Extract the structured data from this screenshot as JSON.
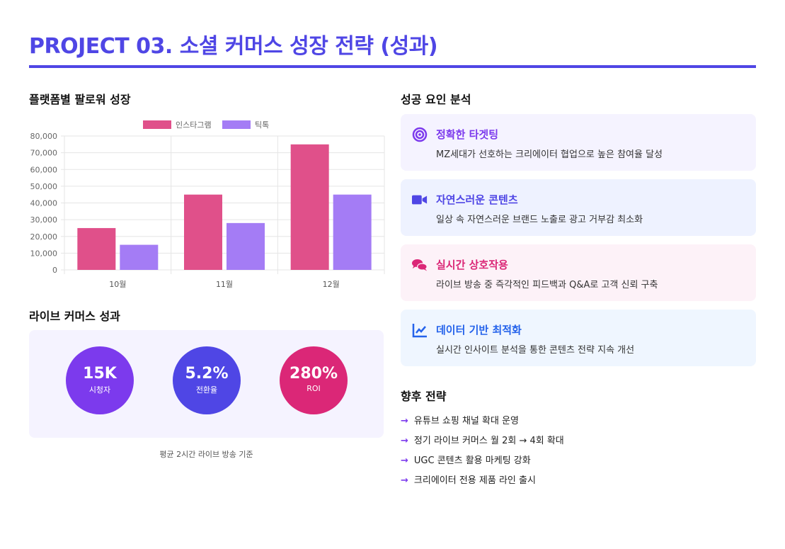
{
  "header": {
    "title": "PROJECT 03. 소셜 커머스 성장 전략 (성과)"
  },
  "chart_section": {
    "title": "플랫폼별 팔로워 성장"
  },
  "chart_data": {
    "type": "bar",
    "categories": [
      "10월",
      "11월",
      "12월"
    ],
    "series": [
      {
        "name": "인스타그램",
        "values": [
          25000,
          45000,
          75000
        ],
        "color": "#e0508a"
      },
      {
        "name": "틱톡",
        "values": [
          15000,
          28000,
          45000
        ],
        "color": "#a47cf5"
      }
    ],
    "ylim": [
      0,
      80000
    ],
    "yticks": [
      "0",
      "10,000",
      "20,000",
      "30,000",
      "40,000",
      "50,000",
      "60,000",
      "70,000",
      "80,000"
    ],
    "grid": true,
    "legend": "top"
  },
  "live": {
    "title": "라이브 커머스 성과",
    "metrics": [
      {
        "value": "15K",
        "label": "시청자",
        "color": "#7c3aed"
      },
      {
        "value": "5.2%",
        "label": "전환율",
        "color": "#4f46e5"
      },
      {
        "value": "280%",
        "label": "ROI",
        "color": "#db2777"
      }
    ],
    "note": "평균 2시간 라이브 방송 기준"
  },
  "factors": {
    "title": "성공 요인 분석",
    "items": [
      {
        "icon": "target-icon",
        "title": "정확한 타겟팅",
        "desc": "MZ세대가 선호하는 크리에이터 협업으로 높은 참여율 달성",
        "color": "#7c3aed",
        "bg": "#f5f3ff"
      },
      {
        "icon": "video-icon",
        "title": "자연스러운 콘텐츠",
        "desc": "일상 속 자연스러운 브랜드 노출로 광고 거부감 최소화",
        "color": "#4f46e5",
        "bg": "#eef2ff"
      },
      {
        "icon": "comments-icon",
        "title": "실시간 상호작용",
        "desc": "라이브 방송 중 즉각적인 피드백과 Q&A로 고객 신뢰 구축",
        "color": "#db2777",
        "bg": "#fdf2f8"
      },
      {
        "icon": "chart-line-icon",
        "title": "데이터 기반 최적화",
        "desc": "실시간 인사이트 분석을 통한 콘텐츠 전략 지속 개선",
        "color": "#2563eb",
        "bg": "#eff6ff"
      }
    ]
  },
  "future": {
    "title": "향후 전략",
    "items": [
      "유튜브 쇼핑 채널 확대 운영",
      "정기 라이브 커머스 월 2회 → 4회 확대",
      "UGC 콘텐츠 활용 마케팅 강화",
      "크리에이터 전용 제품 라인 출시"
    ]
  }
}
